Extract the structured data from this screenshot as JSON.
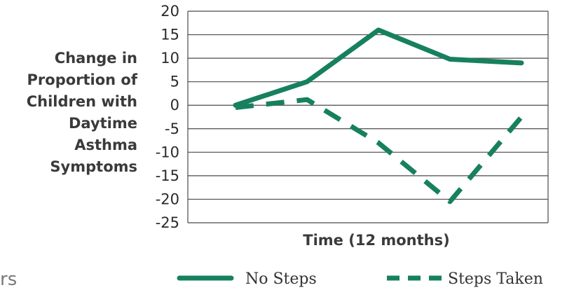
{
  "chart_data": {
    "type": "line",
    "x": [
      0,
      1,
      2,
      3,
      4
    ],
    "series": [
      {
        "name": "No Steps",
        "values": [
          0,
          5,
          16,
          9.8,
          9
        ],
        "dash": "solid"
      },
      {
        "name": "Steps Taken",
        "values": [
          -0.5,
          1.2,
          -8,
          -20.5,
          -2.5
        ],
        "dash": "dashed"
      }
    ],
    "ylim": [
      -25,
      20
    ],
    "yticks": [
      20,
      15,
      10,
      5,
      0,
      -5,
      -10,
      -15,
      -20,
      -25
    ],
    "ylabel_lines": [
      "Change in",
      "Proportion of",
      "Children with",
      "Daytime",
      "Asthma",
      "Symptoms"
    ],
    "xlabel": "Time (12 months)",
    "legend_position": "bottom",
    "grid": true,
    "line_color": "#16805f"
  },
  "fragment_text": "rs"
}
